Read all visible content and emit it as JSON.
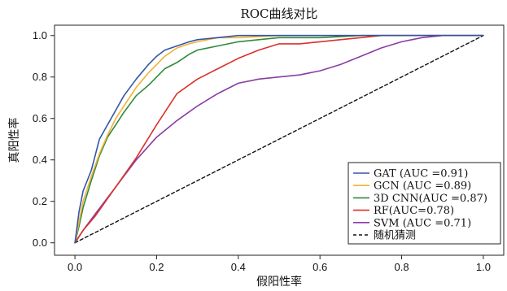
{
  "chart_data": {
    "type": "line",
    "title": "ROC曲线对比",
    "xlabel": "假阳性率",
    "ylabel": "真阳性率",
    "xlim": [
      -0.05,
      1.05
    ],
    "ylim": [
      -0.06,
      1.05
    ],
    "xticks": [
      "0.0",
      "0.2",
      "0.4",
      "0.6",
      "0.8",
      "1.0"
    ],
    "yticks": [
      "0.0",
      "0.2",
      "0.4",
      "0.6",
      "0.8",
      "1.0"
    ],
    "grid": false,
    "legend_position": "lower-right",
    "series": [
      {
        "name": "GAT (AUC =0.91)",
        "color": "#3355aa",
        "dash": "solid",
        "x": [
          0,
          0.01,
          0.02,
          0.04,
          0.06,
          0.08,
          0.1,
          0.12,
          0.15,
          0.18,
          0.2,
          0.22,
          0.25,
          0.28,
          0.3,
          0.35,
          0.4,
          0.5,
          0.6,
          0.7,
          0.8,
          0.9,
          1.0
        ],
        "y": [
          0,
          0.15,
          0.25,
          0.35,
          0.5,
          0.57,
          0.64,
          0.71,
          0.79,
          0.86,
          0.9,
          0.93,
          0.95,
          0.97,
          0.98,
          0.99,
          1.0,
          1.0,
          1.0,
          1.0,
          1.0,
          1.0,
          1.0
        ]
      },
      {
        "name": "GCN (AUC =0.89)",
        "color": "#f2b233",
        "dash": "solid",
        "x": [
          0,
          0.01,
          0.02,
          0.04,
          0.06,
          0.08,
          0.1,
          0.12,
          0.15,
          0.18,
          0.2,
          0.22,
          0.25,
          0.28,
          0.3,
          0.35,
          0.4,
          0.5,
          0.6,
          0.7,
          0.8,
          0.9,
          1.0
        ],
        "y": [
          0,
          0.1,
          0.2,
          0.32,
          0.43,
          0.52,
          0.6,
          0.66,
          0.75,
          0.82,
          0.86,
          0.9,
          0.94,
          0.96,
          0.97,
          0.99,
          0.99,
          1.0,
          1.0,
          1.0,
          1.0,
          1.0,
          1.0
        ]
      },
      {
        "name": "3D CNN(AUC =0.87)",
        "color": "#2e8b3a",
        "dash": "solid",
        "x": [
          0,
          0.01,
          0.02,
          0.04,
          0.06,
          0.08,
          0.1,
          0.12,
          0.15,
          0.18,
          0.2,
          0.22,
          0.25,
          0.28,
          0.3,
          0.35,
          0.4,
          0.45,
          0.5,
          0.6,
          0.7,
          0.8,
          0.9,
          1.0
        ],
        "y": [
          0,
          0.08,
          0.17,
          0.3,
          0.42,
          0.51,
          0.57,
          0.63,
          0.71,
          0.76,
          0.8,
          0.84,
          0.87,
          0.91,
          0.93,
          0.95,
          0.97,
          0.98,
          0.99,
          0.99,
          1.0,
          1.0,
          1.0,
          1.0
        ]
      },
      {
        "name": "RF(AUC=0.78)",
        "color": "#d9312a",
        "dash": "solid",
        "x": [
          0,
          0.02,
          0.05,
          0.1,
          0.15,
          0.2,
          0.25,
          0.3,
          0.35,
          0.4,
          0.45,
          0.5,
          0.55,
          0.6,
          0.65,
          0.7,
          0.75,
          0.8,
          0.85,
          0.9,
          1.0
        ],
        "y": [
          0,
          0.06,
          0.13,
          0.27,
          0.41,
          0.57,
          0.72,
          0.79,
          0.84,
          0.89,
          0.93,
          0.96,
          0.96,
          0.97,
          0.98,
          0.99,
          1.0,
          1.0,
          1.0,
          1.0,
          1.0
        ]
      },
      {
        "name": "SVM (AUC =0.71)",
        "color": "#8a3da3",
        "dash": "solid",
        "x": [
          0,
          0.02,
          0.05,
          0.1,
          0.15,
          0.2,
          0.25,
          0.3,
          0.35,
          0.4,
          0.45,
          0.5,
          0.55,
          0.6,
          0.65,
          0.7,
          0.75,
          0.8,
          0.85,
          0.9,
          1.0
        ],
        "y": [
          0,
          0.06,
          0.14,
          0.27,
          0.4,
          0.51,
          0.59,
          0.66,
          0.72,
          0.77,
          0.79,
          0.8,
          0.81,
          0.83,
          0.86,
          0.9,
          0.94,
          0.97,
          0.99,
          1.0,
          1.0
        ]
      },
      {
        "name": "随机猜测",
        "color": "#111111",
        "dash": "dashed",
        "x": [
          0,
          1
        ],
        "y": [
          0,
          1
        ]
      }
    ]
  }
}
